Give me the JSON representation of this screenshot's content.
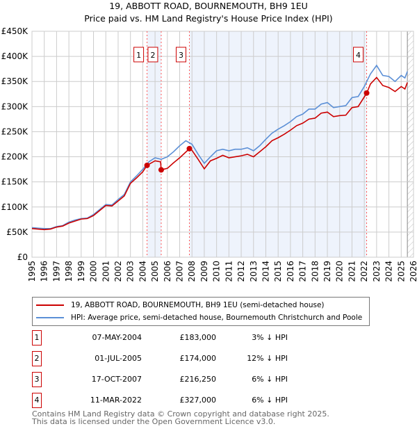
{
  "title": "19, ABBOTT ROAD, BOURNEMOUTH, BH9 1EU",
  "subtitle": "Price paid vs. HM Land Registry's House Price Index (HPI)",
  "chart_data": {
    "type": "line",
    "ylim": [
      0,
      450000
    ],
    "xlim": [
      1995,
      2026
    ],
    "yticks": [
      "£0",
      "£50K",
      "£100K",
      "£150K",
      "£200K",
      "£250K",
      "£300K",
      "£350K",
      "£400K",
      "£450K"
    ],
    "xticks": [
      "1995",
      "1996",
      "1997",
      "1998",
      "1999",
      "2000",
      "2001",
      "2002",
      "2003",
      "2004",
      "2005",
      "2006",
      "2007",
      "2008",
      "2009",
      "2010",
      "2011",
      "2012",
      "2013",
      "2014",
      "2015",
      "2016",
      "2017",
      "2018",
      "2019",
      "2020",
      "2021",
      "2022",
      "2023",
      "2024",
      "2025",
      "2026"
    ],
    "series": [
      {
        "name": "19, ABBOTT ROAD, BOURNEMOUTH, BH9 1EU (semi-detached house)",
        "color": "#cc0000",
        "x": [
          1995,
          1995.5,
          1996,
          1996.5,
          1997,
          1997.5,
          1998,
          1998.5,
          1999,
          1999.5,
          2000,
          2000.5,
          2001,
          2001.5,
          2002,
          2002.5,
          2003,
          2003.5,
          2004,
          2004.35,
          2005,
          2005.45,
          2005.5,
          2006,
          2006.5,
          2007,
          2007.8,
          2008,
          2008.5,
          2009,
          2009.5,
          2010,
          2010.5,
          2011,
          2011.5,
          2012,
          2012.5,
          2013,
          2013.5,
          2014,
          2014.5,
          2015,
          2015.5,
          2016,
          2016.5,
          2017,
          2017.5,
          2018,
          2018.5,
          2019,
          2019.5,
          2020,
          2020.5,
          2021,
          2021.5,
          2022.2,
          2022.5,
          2023,
          2023.5,
          2024,
          2024.5,
          2025,
          2025.3,
          2025.5
        ],
        "y": [
          57000,
          56000,
          55000,
          56000,
          60000,
          62000,
          68000,
          72000,
          76000,
          77000,
          83000,
          93000,
          103000,
          102000,
          112000,
          122000,
          147000,
          158000,
          170000,
          183000,
          192000,
          190000,
          174000,
          177000,
          188000,
          198000,
          216250,
          213000,
          195000,
          176000,
          192000,
          197000,
          203000,
          198000,
          200000,
          202000,
          205000,
          200000,
          210000,
          220000,
          232000,
          238000,
          245000,
          253000,
          262000,
          267000,
          275000,
          277000,
          287000,
          289000,
          280000,
          282000,
          283000,
          298000,
          300000,
          327000,
          345000,
          358000,
          342000,
          338000,
          330000,
          340000,
          335000,
          348000
        ]
      },
      {
        "name": "HPI: Average price, semi-detached house, Bournemouth Christchurch and Poole",
        "color": "#5b8fd6",
        "x": [
          1995,
          1995.5,
          1996,
          1996.5,
          1997,
          1997.5,
          1998,
          1998.5,
          1999,
          1999.5,
          2000,
          2000.5,
          2001,
          2001.5,
          2002,
          2002.5,
          2003,
          2003.5,
          2004,
          2004.5,
          2005,
          2005.5,
          2006,
          2006.5,
          2007,
          2007.5,
          2008,
          2008.5,
          2009,
          2009.5,
          2010,
          2010.5,
          2011,
          2011.5,
          2012,
          2012.5,
          2013,
          2013.5,
          2014,
          2014.5,
          2015,
          2015.5,
          2016,
          2016.5,
          2017,
          2017.5,
          2018,
          2018.5,
          2019,
          2019.5,
          2020,
          2020.5,
          2021,
          2021.5,
          2022,
          2022.5,
          2023,
          2023.5,
          2024,
          2024.5,
          2025,
          2025.3,
          2025.5
        ],
        "y": [
          59000,
          58000,
          57000,
          57000,
          61000,
          63000,
          70000,
          74000,
          77000,
          78000,
          85000,
          95000,
          105000,
          104000,
          115000,
          125000,
          150000,
          162000,
          175000,
          190000,
          198000,
          195000,
          200000,
          210000,
          222000,
          232000,
          225000,
          205000,
          187000,
          200000,
          212000,
          215000,
          212000,
          215000,
          215000,
          218000,
          212000,
          222000,
          235000,
          247000,
          255000,
          262000,
          270000,
          280000,
          285000,
          295000,
          295000,
          305000,
          308000,
          298000,
          300000,
          302000,
          318000,
          320000,
          340000,
          365000,
          382000,
          362000,
          360000,
          350000,
          362000,
          357000,
          370000
        ]
      }
    ],
    "sales": [
      {
        "label": "1",
        "x": 2004.35,
        "y": 183000
      },
      {
        "label": "2",
        "x": 2005.5,
        "y": 174000
      },
      {
        "label": "3",
        "x": 2007.79,
        "y": 216250
      },
      {
        "label": "4",
        "x": 2022.19,
        "y": 327000
      }
    ],
    "shaded": [
      [
        2004.35,
        2005.5
      ],
      [
        2007.79,
        2022.19
      ]
    ],
    "forecast_from": 2025.5
  },
  "legend": {
    "property": "19, ABBOTT ROAD, BOURNEMOUTH, BH9 1EU (semi-detached house)",
    "hpi": "HPI: Average price, semi-detached house, Bournemouth Christchurch and Poole"
  },
  "table": [
    {
      "n": "1",
      "date": "07-MAY-2004",
      "price": "£183,000",
      "hpi": "3% ↓ HPI"
    },
    {
      "n": "2",
      "date": "01-JUL-2005",
      "price": "£174,000",
      "hpi": "12% ↓ HPI"
    },
    {
      "n": "3",
      "date": "17-OCT-2007",
      "price": "£216,250",
      "hpi": "6% ↓ HPI"
    },
    {
      "n": "4",
      "date": "11-MAR-2022",
      "price": "£327,000",
      "hpi": "6% ↓ HPI"
    }
  ],
  "footer": [
    "Contains HM Land Registry data © Crown copyright and database right 2025.",
    "This data is licensed under the Open Government Licence v3.0."
  ]
}
